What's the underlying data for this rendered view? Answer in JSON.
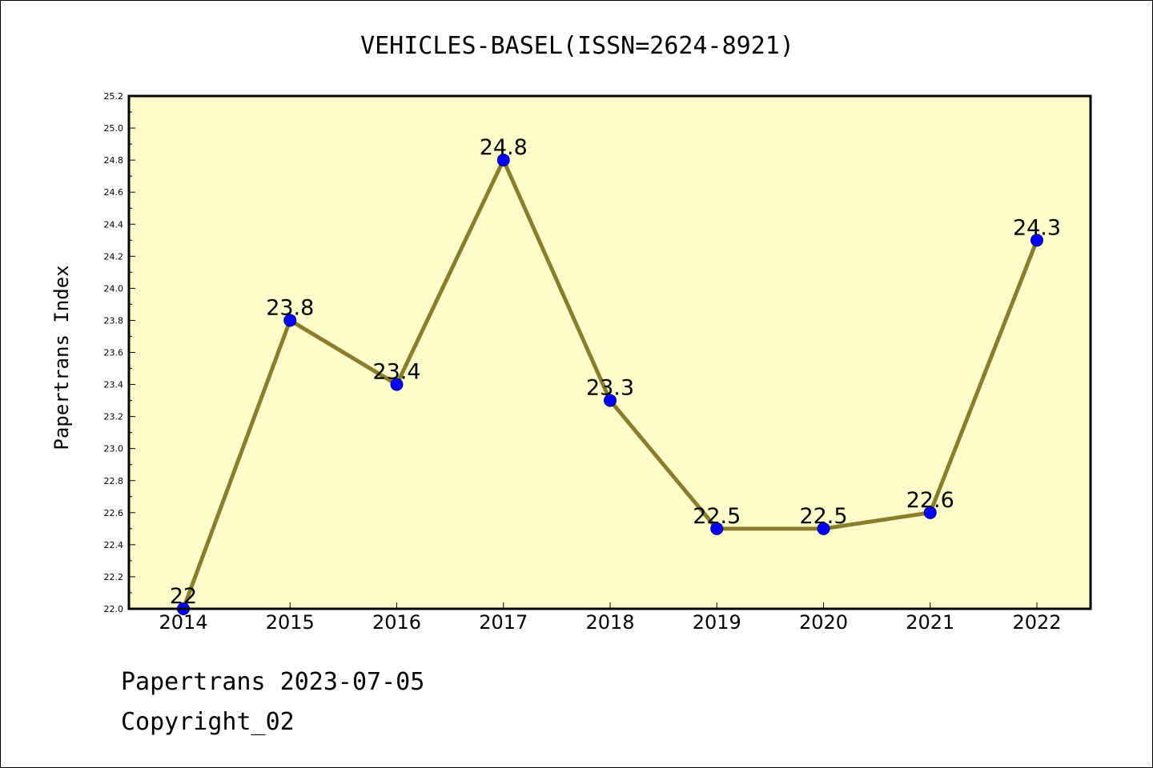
{
  "chart_data": {
    "type": "line",
    "title": "VEHICLES-BASEL(ISSN=2624-8921)",
    "xlabel": "",
    "ylabel": "Papertrans Index",
    "categories": [
      "2014",
      "2015",
      "2016",
      "2017",
      "2018",
      "2019",
      "2020",
      "2021",
      "2022"
    ],
    "series": [
      {
        "values": [
          22,
          23.8,
          23.4,
          24.8,
          23.3,
          22.5,
          22.5,
          22.6,
          24.3
        ]
      }
    ],
    "data_labels": [
      "22",
      "23.8",
      "23.4",
      "24.8",
      "23.3",
      "22.5",
      "22.5",
      "22.6",
      "24.3"
    ],
    "ylim": [
      22.0,
      25.2
    ],
    "yticks": [
      "22.0",
      "22.2",
      "22.4",
      "22.6",
      "22.8",
      "23.0",
      "23.2",
      "23.4",
      "23.6",
      "23.8",
      "24.0",
      "24.2",
      "24.4",
      "24.6",
      "24.8",
      "25.0",
      "25.2"
    ],
    "grid": false,
    "legend": "none",
    "colors": {
      "plot_background": "#ffffcc",
      "line": "#8b7d2e",
      "marker": "#0000ff",
      "marker_edge": "#000080"
    }
  },
  "footer": {
    "line1": "Papertrans 2023-07-05",
    "line2": "Copyright_02"
  }
}
